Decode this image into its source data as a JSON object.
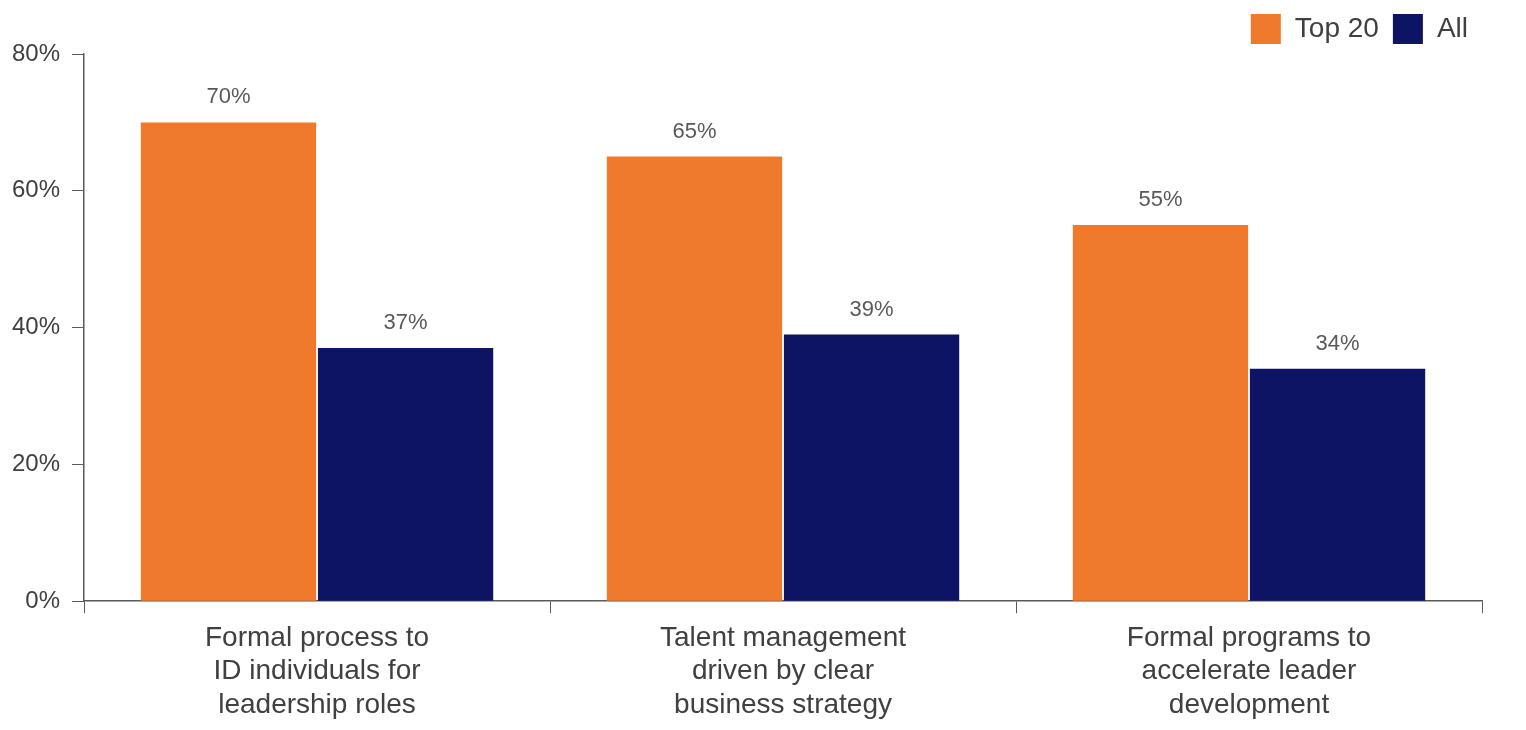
{
  "chart_data": {
    "type": "bar",
    "categories": [
      "Formal process to ID individuals for leadership roles",
      "Talent management driven by clear business strategy",
      "Formal programs to accelerate leader development"
    ],
    "series": [
      {
        "name": "Top 20",
        "color": "#f07a2b",
        "values": [
          70,
          65,
          55
        ],
        "value_labels": [
          "70%",
          "65%",
          "55%"
        ]
      },
      {
        "name": "All",
        "color": "#0e1464",
        "values": [
          37,
          39,
          34
        ],
        "value_labels": [
          "37%",
          "39%",
          "34%"
        ]
      }
    ],
    "ylim": [
      0,
      80
    ],
    "yticks": [
      {
        "value": 0,
        "label": "0%"
      },
      {
        "value": 20,
        "label": "20%"
      },
      {
        "value": 40,
        "label": "40%"
      },
      {
        "value": 60,
        "label": "60%"
      },
      {
        "value": 80,
        "label": "80%"
      }
    ],
    "grid": false,
    "legend": "top right"
  }
}
